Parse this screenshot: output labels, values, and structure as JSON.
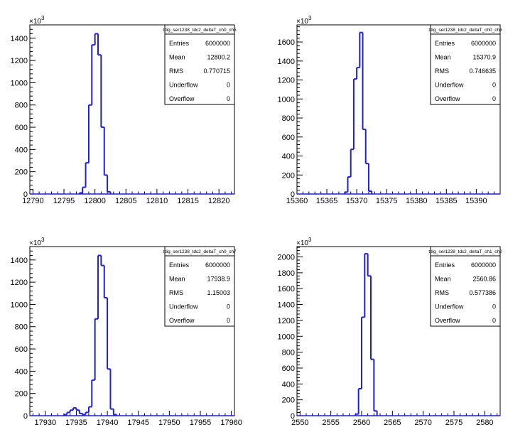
{
  "chart_data": [
    {
      "type": "histogram",
      "stats_title": "tdig_ser1238_tdc2_deltaT_ch0_ch5",
      "stats": [
        {
          "label": "Entries",
          "value": "6000000"
        },
        {
          "label": "Mean",
          "value": "12800.2"
        },
        {
          "label": "RMS",
          "value": "0.770715"
        },
        {
          "label": "Underflow",
          "value": "0"
        },
        {
          "label": "Overflow",
          "value": "0"
        }
      ],
      "xlim": [
        12789.5,
        12822.5
      ],
      "ylim": [
        0,
        1520
      ],
      "y_multiplier_label": "10",
      "y_multiplier_exp": "3",
      "xticks": [
        "12790",
        "12795",
        "12800",
        "12805",
        "12810",
        "12815",
        "12820"
      ],
      "yticks": [
        "0",
        "200",
        "400",
        "600",
        "800",
        "1000",
        "1200",
        "1400"
      ],
      "bin_width": 0.5,
      "bins": [
        {
          "x": 12797.5,
          "y": 10
        },
        {
          "x": 12798.0,
          "y": 60
        },
        {
          "x": 12798.5,
          "y": 280
        },
        {
          "x": 12799.0,
          "y": 800
        },
        {
          "x": 12799.5,
          "y": 1340
        },
        {
          "x": 12800.0,
          "y": 1440
        },
        {
          "x": 12800.5,
          "y": 1250
        },
        {
          "x": 12801.0,
          "y": 600
        },
        {
          "x": 12801.5,
          "y": 170
        },
        {
          "x": 12802.0,
          "y": 20
        }
      ]
    },
    {
      "type": "histogram",
      "stats_title": "tdig_ser1238_tdc2_deltaT_ch0_ch6",
      "stats": [
        {
          "label": "Entries",
          "value": "6000000"
        },
        {
          "label": "Mean",
          "value": "15370.9"
        },
        {
          "label": "RMS",
          "value": "0.746635"
        },
        {
          "label": "Underflow",
          "value": "0"
        },
        {
          "label": "Overflow",
          "value": "0"
        }
      ],
      "xlim": [
        15360,
        15394
      ],
      "ylim": [
        0,
        1780
      ],
      "y_multiplier_label": "10",
      "y_multiplier_exp": "3",
      "xticks": [
        "15360",
        "15365",
        "15370",
        "15375",
        "15380",
        "15385",
        "15390"
      ],
      "yticks": [
        "0",
        "200",
        "400",
        "600",
        "800",
        "1000",
        "1200",
        "1400",
        "1600"
      ],
      "bin_width": 0.5,
      "bins": [
        {
          "x": 15368.0,
          "y": 20
        },
        {
          "x": 15368.5,
          "y": 180
        },
        {
          "x": 15369.0,
          "y": 470
        },
        {
          "x": 15369.5,
          "y": 1210
        },
        {
          "x": 15370.0,
          "y": 1330
        },
        {
          "x": 15370.5,
          "y": 1700
        },
        {
          "x": 15371.0,
          "y": 680
        },
        {
          "x": 15371.5,
          "y": 320
        },
        {
          "x": 15372.0,
          "y": 30
        }
      ]
    },
    {
      "type": "histogram",
      "stats_title": "tdig_ser1238_tdc2_deltaT_ch0_ch7",
      "stats": [
        {
          "label": "Entries",
          "value": "6000000"
        },
        {
          "label": "Mean",
          "value": "17938.9"
        },
        {
          "label": "RMS",
          "value": "1.15003"
        },
        {
          "label": "Underflow",
          "value": "0"
        },
        {
          "label": "Overflow",
          "value": "0"
        }
      ],
      "xlim": [
        17927.5,
        17960.5
      ],
      "ylim": [
        0,
        1520
      ],
      "y_multiplier_label": "10",
      "y_multiplier_exp": "3",
      "xticks": [
        "17930",
        "17935",
        "17940",
        "17945",
        "17950",
        "17955",
        "17960"
      ],
      "yticks": [
        "0",
        "200",
        "400",
        "600",
        "800",
        "1000",
        "1200",
        "1400"
      ],
      "bin_width": 0.5,
      "bins": [
        {
          "x": 17933.0,
          "y": 10
        },
        {
          "x": 17933.5,
          "y": 30
        },
        {
          "x": 17934.0,
          "y": 50
        },
        {
          "x": 17934.5,
          "y": 70
        },
        {
          "x": 17935.0,
          "y": 50
        },
        {
          "x": 17935.5,
          "y": 20
        },
        {
          "x": 17936.0,
          "y": 10
        },
        {
          "x": 17936.5,
          "y": 30
        },
        {
          "x": 17937.0,
          "y": 80
        },
        {
          "x": 17937.5,
          "y": 320
        },
        {
          "x": 17938.0,
          "y": 870
        },
        {
          "x": 17938.5,
          "y": 1440
        },
        {
          "x": 17939.0,
          "y": 1350
        },
        {
          "x": 17939.5,
          "y": 1060
        },
        {
          "x": 17940.0,
          "y": 420
        },
        {
          "x": 17940.5,
          "y": 60
        },
        {
          "x": 17941.0,
          "y": 10
        }
      ]
    },
    {
      "type": "histogram",
      "stats_title": "tdig_ser1238_tdc2_deltaT_ch1_ch2",
      "stats": [
        {
          "label": "Entries",
          "value": "6000000"
        },
        {
          "label": "Mean",
          "value": "2560.86"
        },
        {
          "label": "RMS",
          "value": "0.577386"
        },
        {
          "label": "Underflow",
          "value": "0"
        },
        {
          "label": "Overflow",
          "value": "0"
        }
      ],
      "xlim": [
        2549.5,
        2582.5
      ],
      "ylim": [
        0,
        2130
      ],
      "y_multiplier_label": "10",
      "y_multiplier_exp": "3",
      "xticks": [
        "2550",
        "2555",
        "2560",
        "2565",
        "2570",
        "2575",
        "2580"
      ],
      "yticks": [
        "0",
        "200",
        "400",
        "600",
        "800",
        "1000",
        "1200",
        "1400",
        "1600",
        "1800",
        "2000"
      ],
      "bin_width": 0.5,
      "bins": [
        {
          "x": 2559.0,
          "y": 20
        },
        {
          "x": 2559.5,
          "y": 340
        },
        {
          "x": 2560.0,
          "y": 1240
        },
        {
          "x": 2560.5,
          "y": 2040
        },
        {
          "x": 2561.0,
          "y": 1760
        },
        {
          "x": 2561.5,
          "y": 710
        },
        {
          "x": 2562.0,
          "y": 60
        }
      ]
    }
  ],
  "colors": {
    "histogram_line": "#1f1fd6",
    "axis": "#000000",
    "background": "#ffffff"
  }
}
